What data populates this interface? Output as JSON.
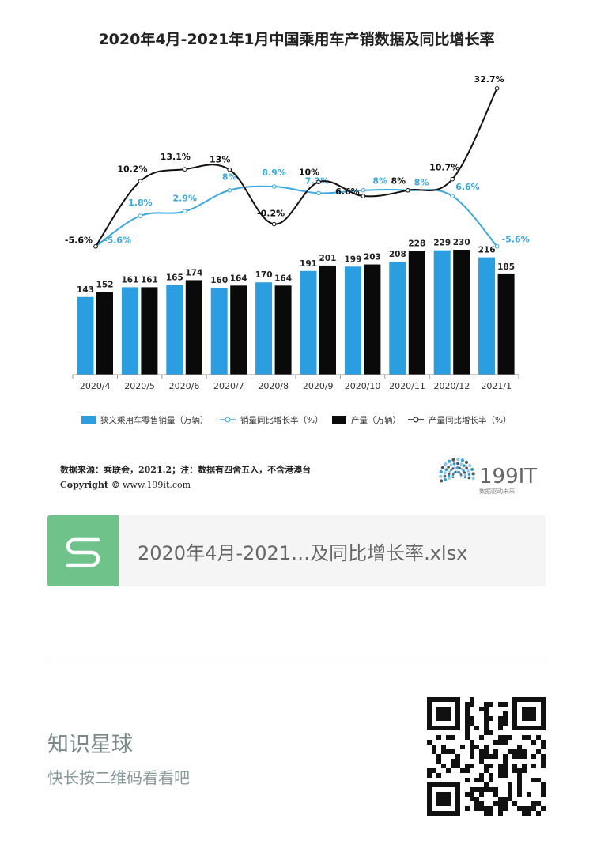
{
  "chart_data": {
    "type": "bar",
    "title": "2020年4月-2021年1月中国乘用车产销数据及同比增长率",
    "categories": [
      "2020/4",
      "2020/5",
      "2020/6",
      "2020/7",
      "2020/8",
      "2020/9",
      "2020/10",
      "2020/11",
      "2020/12",
      "2021/1"
    ],
    "series": [
      {
        "name": "狭义乘用车零售销量（万辆）",
        "kind": "bar",
        "color": "#2a9ee0",
        "values": [
          143,
          161,
          165,
          160,
          170,
          191,
          199,
          208,
          229,
          216
        ]
      },
      {
        "name": "产量（万辆）",
        "kind": "bar",
        "color": "#0a0a0a",
        "values": [
          152,
          161,
          174,
          164,
          164,
          201,
          203,
          228,
          230,
          185
        ]
      },
      {
        "name": "销量同比增长率（%）",
        "kind": "line",
        "color": "#3aa8e2",
        "values": [
          -5.6,
          1.8,
          2.9,
          8,
          8.9,
          7.3,
          8,
          8,
          6.6,
          -5.6
        ],
        "labels": [
          "-5.6%",
          "1.8%",
          "2.9%",
          "8%",
          "8.9%",
          "7.3%",
          "8%",
          "8%",
          "6.6%",
          "-5.6%"
        ]
      },
      {
        "name": "产量同比增长率（%）",
        "kind": "line",
        "color": "#111111",
        "values": [
          -5.6,
          10.2,
          13.1,
          13,
          -0.2,
          10,
          6.6,
          8,
          10.7,
          32.7
        ],
        "labels": [
          "-5.6%",
          "10.2%",
          "13.1%",
          "13%",
          "-0.2%",
          "10%",
          "6.6%",
          "8%",
          "10.7%",
          "32.7%"
        ]
      }
    ],
    "legend": "bottom",
    "grid": false
  },
  "source": {
    "line1": "数据来源：乘联会，2021.2；注：数据有四舍五入，不含港澳台",
    "copyright": "Copyright ©",
    "website": "www.199it.com"
  },
  "brand": {
    "name": "199IT",
    "tagline": "数据驱动未来"
  },
  "file_card": {
    "icon": "spreadsheet-s-icon",
    "filename": "2020年4月-2021…及同比增长率.xlsx"
  },
  "planet": {
    "title": "知识星球",
    "subtitle": "快长按二维码看看吧"
  }
}
